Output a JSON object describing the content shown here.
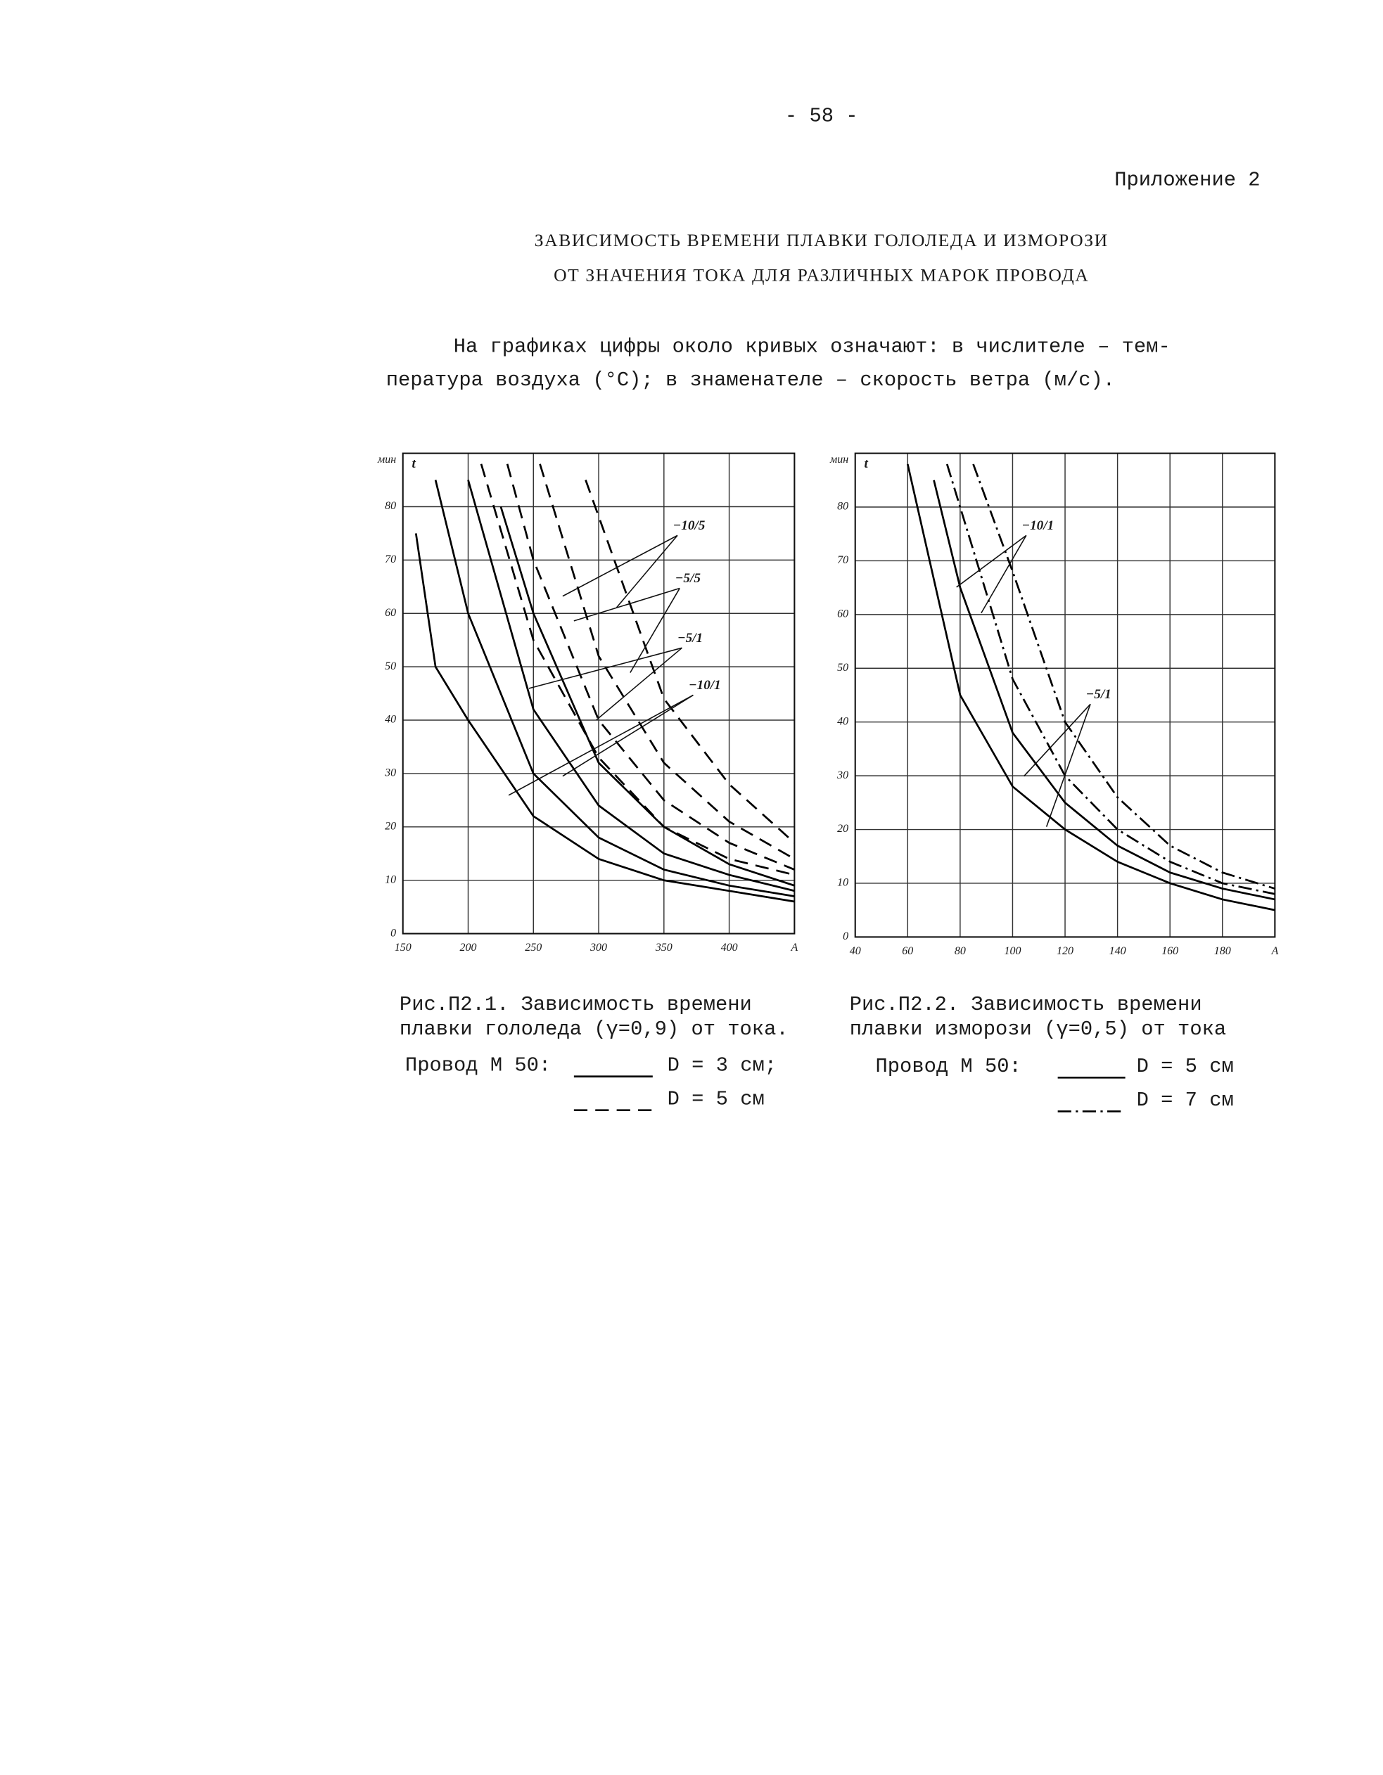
{
  "header": {
    "page_number": "- 58 -",
    "appendix": "Приложение 2"
  },
  "title": [
    "ЗАВИСИМОСТЬ ВРЕМЕНИ ПЛАВКИ ГОЛОЛЕДА И ИЗМОРОЗИ",
    "ОТ ЗНАЧЕНИЯ ТОКА ДЛЯ РАЗЛИЧНЫХ МАРОК ПРОВОДА"
  ],
  "paragraph": [
    "На графиках цифры около кривых означают: в числителе – тем-",
    "пература  воздуха (°C); в знаменателе – скорость ветра (м/с)."
  ],
  "chart_data": [
    {
      "type": "line",
      "caption": [
        "Рис.П2.1. Зависимость времени",
        "плавки гололеда (γ=0,9) от тока."
      ],
      "x_unit": "A",
      "y_unit": "мин",
      "y_symbol": "t",
      "xlim": [
        150,
        450
      ],
      "xticks": [
        150,
        200,
        250,
        300,
        350,
        400
      ],
      "ylim": [
        0,
        90
      ],
      "yticks": [
        0,
        10,
        20,
        30,
        40,
        50,
        60,
        70,
        80
      ],
      "grid": true,
      "legend_title": "Провод М 50:",
      "series": [
        {
          "name": "D = 3 см;",
          "color": "#000000",
          "dash": "solid",
          "curves": [
            {
              "x": [
                160,
                175,
                200,
                250,
                300,
                350,
                400,
                450
              ],
              "values": [
                75,
                50,
                40,
                22,
                14,
                10,
                8,
                6
              ]
            },
            {
              "x": [
                175,
                200,
                250,
                300,
                350,
                400,
                450
              ],
              "values": [
                85,
                60,
                30,
                18,
                12,
                9,
                7
              ]
            },
            {
              "x": [
                200,
                250,
                300,
                350,
                400,
                450
              ],
              "values": [
                85,
                42,
                24,
                15,
                11,
                8
              ]
            },
            {
              "x": [
                225,
                250,
                300,
                350,
                400,
                450
              ],
              "values": [
                80,
                60,
                32,
                20,
                13,
                9
              ]
            }
          ]
        },
        {
          "name": "D = 5 см",
          "color": "#000000",
          "dash": "dashed",
          "curves": [
            {
              "x": [
                210,
                250,
                300,
                350,
                400,
                450
              ],
              "values": [
                88,
                55,
                33,
                20,
                14,
                11
              ]
            },
            {
              "x": [
                230,
                250,
                300,
                350,
                400,
                450
              ],
              "values": [
                88,
                70,
                40,
                25,
                17,
                12
              ]
            },
            {
              "x": [
                255,
                300,
                350,
                400,
                450
              ],
              "values": [
                88,
                52,
                32,
                21,
                14
              ]
            },
            {
              "x": [
                290,
                350,
                400,
                450
              ],
              "values": [
                85,
                44,
                28,
                17
              ]
            }
          ]
        }
      ],
      "annotations": [
        "−10/5",
        "−5/5",
        "−5/1",
        "−10/1"
      ]
    },
    {
      "type": "line",
      "caption": [
        "Рис.П2.2. Зависимость времени",
        "плавки изморози (γ=0,5) от тока"
      ],
      "x_unit": "A",
      "y_unit": "мин",
      "y_symbol": "t",
      "xlim": [
        40,
        200
      ],
      "xticks": [
        40,
        60,
        80,
        100,
        120,
        140,
        160,
        180
      ],
      "ylim": [
        0,
        90
      ],
      "yticks": [
        0,
        10,
        20,
        30,
        40,
        50,
        60,
        70,
        80
      ],
      "grid": true,
      "legend_title": "Провод М 50:",
      "series": [
        {
          "name": "D = 5 см",
          "color": "#000000",
          "dash": "solid",
          "curves": [
            {
              "x": [
                60,
                80,
                100,
                120,
                140,
                160,
                180,
                200
              ],
              "values": [
                88,
                45,
                28,
                20,
                14,
                10,
                7,
                5
              ]
            },
            {
              "x": [
                70,
                80,
                100,
                120,
                140,
                160,
                180,
                200
              ],
              "values": [
                85,
                65,
                38,
                25,
                17,
                12,
                9,
                7
              ]
            }
          ]
        },
        {
          "name": "D = 7 см",
          "color": "#000000",
          "dash": "dashdot",
          "curves": [
            {
              "x": [
                75,
                100,
                120,
                140,
                160,
                180,
                200
              ],
              "values": [
                88,
                48,
                30,
                20,
                14,
                10,
                8
              ]
            },
            {
              "x": [
                85,
                100,
                120,
                140,
                160,
                180,
                200
              ],
              "values": [
                88,
                68,
                40,
                26,
                17,
                12,
                9
              ]
            }
          ]
        }
      ],
      "annotations": [
        "−10/1",
        "−5/1"
      ]
    }
  ]
}
